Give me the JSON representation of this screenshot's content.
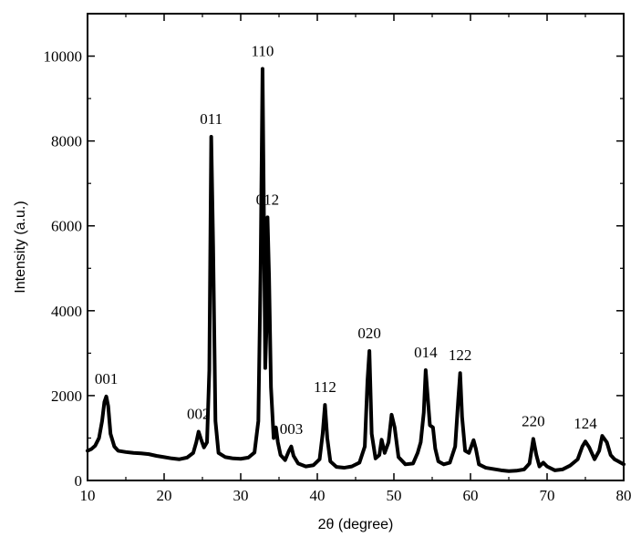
{
  "chart_data": {
    "type": "line",
    "title": "",
    "xlabel": "2θ (degree)",
    "ylabel": "Intensity (a.u.)",
    "xlim": [
      10,
      80
    ],
    "ylim": [
      0,
      11000
    ],
    "xticks": [
      10,
      20,
      30,
      40,
      50,
      60,
      70,
      80
    ],
    "yticks": [
      0,
      2000,
      4000,
      6000,
      8000,
      10000
    ],
    "grid": false,
    "legend": "none",
    "line_color": "#000000",
    "series": [
      {
        "x": [
          10.0,
          10.5,
          11.0,
          11.5,
          11.9,
          12.2,
          12.45,
          12.7,
          13.0,
          13.5,
          14.0,
          15.0,
          16.0,
          17.0,
          18.0,
          19.0,
          20.0,
          21.0,
          22.0,
          23.0,
          23.8,
          24.2,
          24.5,
          24.8,
          25.2,
          25.6,
          25.9,
          26.15,
          26.4,
          26.7,
          27.1,
          28.0,
          29.0,
          30.0,
          31.0,
          31.8,
          32.3,
          32.6,
          32.85,
          33.05,
          33.2,
          33.35,
          33.5,
          33.7,
          33.95,
          34.3,
          34.6,
          34.85,
          35.2,
          35.8,
          36.3,
          36.6,
          36.9,
          37.5,
          38.5,
          39.5,
          40.3,
          40.7,
          41.0,
          41.3,
          41.7,
          42.5,
          43.5,
          44.5,
          45.5,
          46.2,
          46.55,
          46.8,
          47.1,
          47.6,
          48.1,
          48.4,
          48.8,
          49.3,
          49.7,
          50.1,
          50.6,
          51.5,
          52.5,
          53.1,
          53.5,
          53.9,
          54.15,
          54.4,
          54.7,
          55.1,
          55.4,
          55.8,
          56.5,
          57.3,
          58.0,
          58.4,
          58.65,
          58.9,
          59.3,
          59.8,
          60.4,
          60.7,
          61.1,
          62.0,
          63.0,
          64.0,
          65.0,
          66.0,
          67.0,
          67.7,
          68.2,
          68.6,
          69.0,
          69.5,
          70.0,
          71.0,
          72.0,
          73.0,
          74.0,
          74.6,
          75.0,
          75.5,
          76.2,
          76.8,
          77.2,
          77.8,
          78.3,
          78.8,
          79.3,
          80.0
        ],
        "y": [
          700,
          740,
          820,
          1000,
          1400,
          1850,
          1980,
          1750,
          1100,
          800,
          700,
          670,
          650,
          640,
          620,
          580,
          550,
          520,
          500,
          540,
          650,
          900,
          1150,
          980,
          780,
          900,
          2600,
          8100,
          5500,
          1400,
          650,
          550,
          520,
          510,
          540,
          660,
          1400,
          5000,
          9700,
          5800,
          2650,
          3500,
          6200,
          4800,
          2200,
          1000,
          1250,
          900,
          600,
          480,
          700,
          800,
          580,
          400,
          330,
          360,
          500,
          1100,
          1780,
          1000,
          450,
          320,
          300,
          330,
          420,
          800,
          2350,
          3050,
          1100,
          520,
          600,
          960,
          650,
          900,
          1550,
          1250,
          550,
          380,
          400,
          650,
          900,
          1600,
          2600,
          2000,
          1300,
          1250,
          750,
          450,
          380,
          420,
          800,
          1900,
          2530,
          1500,
          700,
          650,
          950,
          750,
          380,
          300,
          270,
          240,
          220,
          230,
          260,
          400,
          980,
          600,
          330,
          420,
          330,
          240,
          260,
          350,
          500,
          800,
          920,
          780,
          500,
          700,
          1050,
          900,
          600,
          500,
          450,
          380
        ]
      }
    ],
    "annotations": [
      {
        "text": "001",
        "x": 12.45,
        "y": 1980
      },
      {
        "text": "002",
        "x": 24.5,
        "y": 1150
      },
      {
        "text": "011",
        "x": 26.15,
        "y": 8100
      },
      {
        "text": "110",
        "x": 32.85,
        "y": 9700
      },
      {
        "text": "012",
        "x": 33.5,
        "y": 6200
      },
      {
        "text": "003",
        "x": 36.6,
        "y": 800
      },
      {
        "text": "112",
        "x": 41.0,
        "y": 1780
      },
      {
        "text": "020",
        "x": 46.8,
        "y": 3050
      },
      {
        "text": "014",
        "x": 54.15,
        "y": 2600
      },
      {
        "text": "122",
        "x": 58.65,
        "y": 2530
      },
      {
        "text": "220",
        "x": 68.2,
        "y": 980
      },
      {
        "text": "124",
        "x": 75.0,
        "y": 920
      }
    ]
  }
}
